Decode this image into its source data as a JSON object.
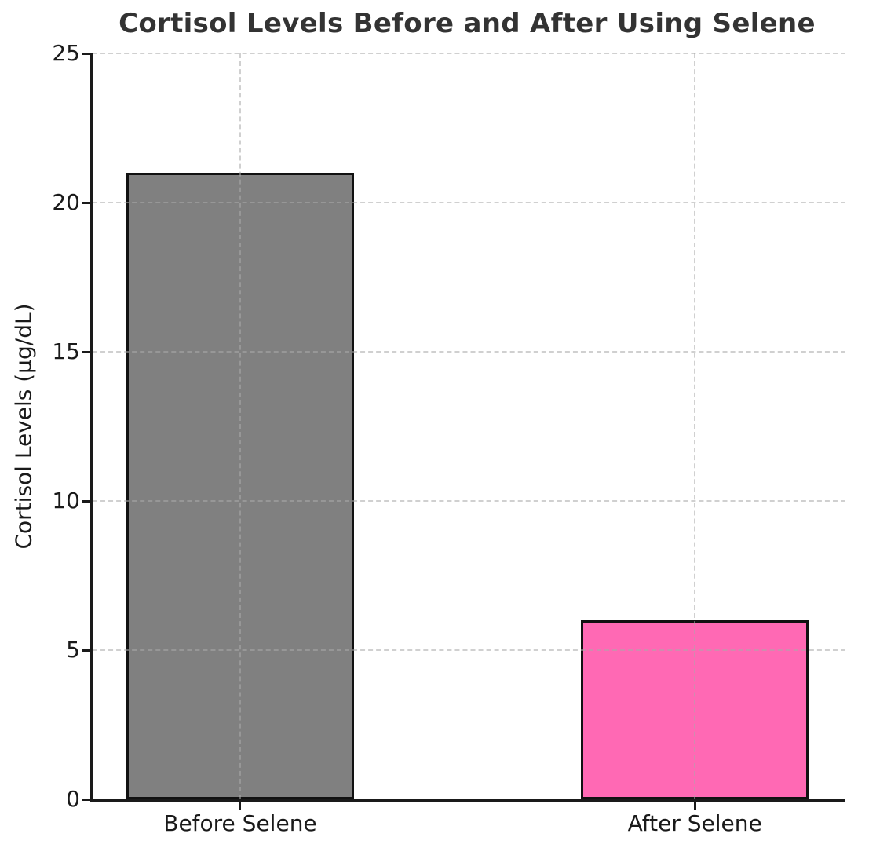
{
  "chart_data": {
    "type": "bar",
    "title": "Cortisol Levels Before and After Using Selene",
    "xlabel": "",
    "ylabel": "Cortisol Levels (µg/dL)",
    "categories": [
      "Before Selene",
      "After Selene"
    ],
    "values": [
      21,
      6
    ],
    "bar_colors": [
      "#808080",
      "#FF69B4"
    ],
    "bar_edge_color": "#111111",
    "ylim": [
      0,
      25
    ],
    "yticks": [
      0,
      5,
      10,
      15,
      20,
      25
    ],
    "ytick_labels": [
      "0",
      "5",
      "10",
      "15",
      "20",
      "25"
    ],
    "grid": "dashed gridlines, horizontal at each y tick and vertical at each bar center, drawn above bars",
    "legend_position": "none",
    "style": {
      "title_color": "#333333",
      "axis_color": "#1a1a1a",
      "tick_label_color": "#1a1a1a",
      "grid_color": "#aaaaaa",
      "background_color": "#ffffff"
    }
  }
}
